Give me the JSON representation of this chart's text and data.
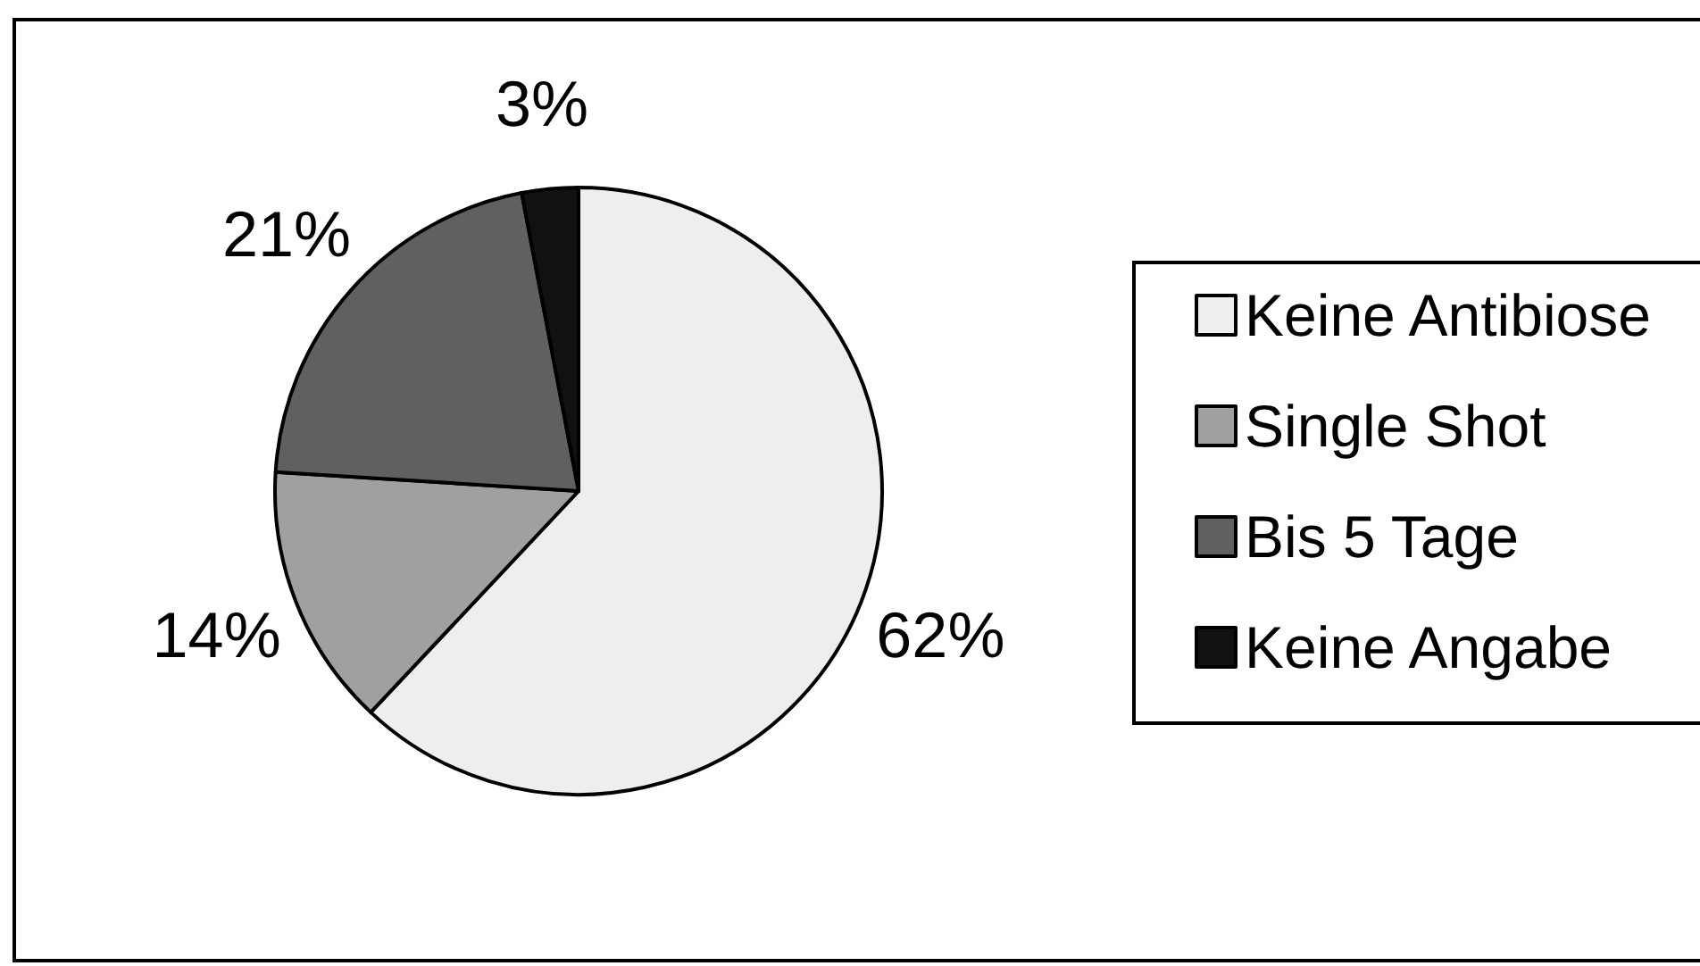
{
  "chart_data": {
    "type": "pie",
    "categories": [
      "Keine Antibiose",
      "Single Shot",
      "Bis 5 Tage",
      "Keine Angabe"
    ],
    "values": [
      62,
      14,
      21,
      3
    ],
    "colors": [
      "#eeeeee",
      "#a0a0a0",
      "#606060",
      "#111111"
    ],
    "value_labels": [
      "62%",
      "14%",
      "21%",
      "3%"
    ],
    "legend": "right"
  }
}
